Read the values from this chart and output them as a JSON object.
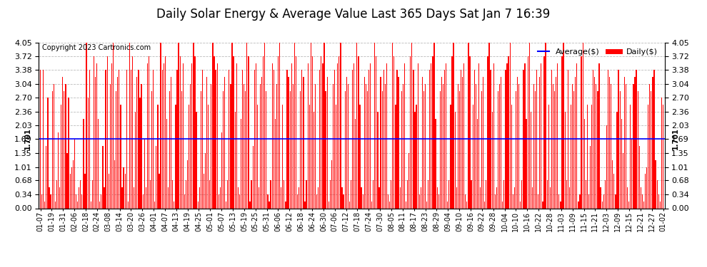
{
  "title": "Daily Solar Energy & Average Value Last 365 Days Sat Jan 7 16:39",
  "copyright": "Copyright 2023 Cartronics.com",
  "average_label": "Average($)",
  "daily_label": "Daily($)",
  "average_value": 1.701,
  "ylim": [
    0.0,
    4.05
  ],
  "yticks": [
    0.0,
    0.34,
    0.68,
    1.01,
    1.35,
    1.69,
    2.03,
    2.36,
    2.7,
    3.04,
    3.38,
    3.72,
    4.05
  ],
  "bar_color": "#ff0000",
  "avg_line_color": "#0000ff",
  "grid_color": "#bbbbbb",
  "background_color": "#ffffff",
  "title_fontsize": 12,
  "avg_annotation_color": "#000000",
  "x_labels": [
    "01-07",
    "01-19",
    "01-31",
    "02-06",
    "02-18",
    "02-24",
    "03-08",
    "03-14",
    "03-20",
    "03-26",
    "04-01",
    "04-07",
    "04-13",
    "04-19",
    "04-25",
    "05-01",
    "05-07",
    "05-13",
    "05-19",
    "05-25",
    "05-31",
    "06-06",
    "06-12",
    "06-18",
    "06-24",
    "06-30",
    "07-06",
    "07-12",
    "07-18",
    "07-24",
    "07-30",
    "08-05",
    "08-11",
    "08-17",
    "08-23",
    "08-29",
    "09-04",
    "09-10",
    "09-16",
    "09-22",
    "09-28",
    "10-04",
    "10-10",
    "10-16",
    "10-22",
    "10-28",
    "11-03",
    "11-09",
    "11-15",
    "11-21",
    "12-03",
    "12-09",
    "12-15",
    "12-21",
    "12-27",
    "01-02"
  ],
  "daily_values": [
    3.38,
    0.34,
    3.38,
    0.17,
    1.52,
    2.7,
    0.51,
    0.34,
    2.87,
    3.04,
    0.17,
    0.68,
    1.86,
    0.51,
    2.53,
    3.21,
    2.87,
    3.04,
    1.35,
    2.7,
    0.85,
    1.01,
    1.18,
    1.69,
    0.34,
    0.17,
    0.51,
    0.68,
    0.34,
    2.19,
    0.85,
    4.05,
    2.7,
    3.38,
    0.17,
    0.68,
    3.72,
    3.21,
    3.55,
    2.19,
    0.17,
    0.34,
    1.52,
    0.51,
    3.38,
    3.72,
    0.85,
    3.04,
    3.55,
    4.05,
    1.18,
    2.87,
    3.21,
    3.38,
    2.53,
    0.51,
    1.01,
    0.85,
    3.38,
    0.17,
    4.05,
    3.38,
    3.72,
    0.51,
    2.36,
    3.21,
    3.38,
    2.7,
    3.04,
    0.34,
    1.69,
    0.51,
    3.55,
    3.72,
    0.68,
    2.87,
    3.38,
    0.17,
    1.52,
    2.53,
    0.85,
    4.05,
    3.38,
    3.55,
    3.72,
    2.19,
    0.51,
    2.87,
    3.21,
    0.68,
    0.17,
    2.53,
    3.38,
    4.05,
    3.72,
    2.87,
    3.55,
    0.34,
    0.68,
    1.18,
    2.53,
    3.04,
    3.55,
    4.05,
    3.72,
    2.36,
    0.17,
    0.51,
    2.87,
    3.38,
    0.85,
    1.35,
    3.21,
    2.53,
    0.68,
    3.04,
    4.05,
    3.72,
    3.38,
    3.55,
    0.34,
    0.51,
    1.86,
    2.87,
    3.21,
    0.17,
    0.68,
    3.38,
    3.04,
    4.05,
    3.72,
    2.36,
    3.55,
    0.51,
    0.34,
    2.19,
    3.38,
    3.04,
    2.87,
    4.05,
    3.72,
    0.17,
    0.68,
    1.52,
    3.38,
    3.55,
    2.53,
    0.51,
    3.04,
    3.21,
    3.72,
    4.05,
    2.87,
    0.34,
    0.17,
    0.68,
    3.55,
    3.38,
    2.19,
    3.04,
    3.72,
    4.05,
    0.51,
    2.53,
    0.68,
    0.17,
    3.38,
    3.21,
    2.87,
    3.55,
    3.04,
    4.05,
    3.72,
    0.34,
    0.51,
    2.87,
    3.38,
    3.21,
    0.17,
    0.68,
    3.55,
    2.53,
    4.05,
    3.72,
    2.36,
    3.04,
    0.34,
    0.51,
    3.38,
    3.72,
    3.55,
    4.05,
    2.87,
    3.21,
    0.17,
    0.68,
    1.18,
    3.04,
    3.38,
    2.53,
    3.55,
    3.72,
    4.05,
    0.51,
    0.34,
    2.87,
    3.21,
    3.04,
    0.17,
    0.68,
    3.38,
    3.55,
    2.19,
    4.05,
    3.72,
    2.53,
    0.51,
    0.34,
    3.21,
    3.04,
    2.87,
    3.38,
    3.55,
    0.17,
    0.68,
    4.05,
    3.72,
    2.36,
    0.51,
    3.21,
    2.87,
    3.38,
    3.04,
    3.55,
    0.34,
    0.17,
    0.68,
    4.05,
    3.72,
    2.53,
    3.38,
    3.21,
    0.51,
    2.87,
    3.04,
    3.55,
    0.17,
    0.68,
    1.35,
    3.72,
    4.05,
    3.38,
    2.36,
    2.53,
    3.55,
    0.34,
    0.51,
    3.21,
    2.87,
    3.04,
    0.17,
    0.68,
    3.38,
    3.55,
    3.72,
    4.05,
    2.19,
    0.51,
    0.34,
    2.87,
    3.21,
    3.04,
    3.38,
    3.55,
    0.17,
    0.68,
    2.53,
    3.72,
    4.05,
    2.36,
    0.51,
    3.04,
    2.87,
    3.38,
    3.21,
    3.55,
    0.34,
    0.17,
    4.05,
    3.72,
    0.68,
    2.53,
    3.38,
    3.04,
    2.19,
    3.55,
    0.51,
    2.87,
    3.21,
    0.17,
    0.68,
    3.72,
    4.05,
    3.38,
    2.36,
    3.55,
    0.34,
    0.51,
    2.87,
    3.04,
    3.21,
    0.17,
    0.68,
    3.38,
    3.55,
    3.72,
    4.05,
    2.53,
    0.34,
    0.51,
    2.87,
    3.21,
    3.04,
    0.17,
    0.68,
    3.38,
    3.55,
    2.19,
    3.72,
    4.05,
    2.36,
    0.51,
    3.04,
    2.87,
    3.38,
    0.34,
    3.21,
    3.55,
    0.17,
    3.72,
    4.05,
    0.68,
    2.53,
    0.51,
    3.38,
    3.04,
    2.87,
    3.21,
    3.55,
    0.34,
    0.17,
    3.72,
    4.05,
    2.36,
    0.68,
    3.38,
    0.51,
    2.53,
    3.04,
    2.87,
    3.21,
    3.55,
    0.17,
    0.34,
    3.72,
    4.05,
    2.19,
    0.68,
    2.53,
    0.34,
    1.52,
    2.53,
    3.38,
    3.21,
    3.04,
    2.87,
    3.55,
    0.51,
    0.17,
    0.34,
    0.68,
    2.03,
    3.38,
    3.21,
    3.04,
    1.18,
    0.85,
    0.34,
    2.36,
    3.38,
    2.87,
    2.19,
    1.35,
    3.21,
    3.04,
    0.51,
    0.17,
    2.53,
    1.69,
    3.04,
    3.21,
    3.38,
    2.87,
    1.52,
    0.51,
    0.34,
    0.17,
    0.85,
    1.01,
    2.53,
    3.04,
    2.87,
    3.21,
    3.38,
    1.18,
    0.68,
    0.34,
    0.17,
    2.7,
    2.53
  ]
}
